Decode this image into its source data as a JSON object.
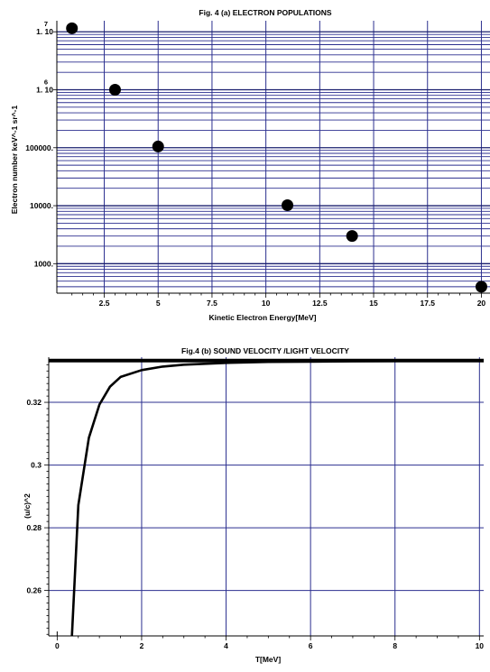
{
  "chart_data": [
    {
      "type": "scatter",
      "title": "Fig. 4 (a)  ELECTRON POPULATIONS",
      "xlabel": "Kinetic Electron Energy[MeV]",
      "ylabel": "Electron number keV^-1 sr^-1",
      "x_scale": "linear",
      "y_scale": "log",
      "xlim": [
        0.3,
        20.4
      ],
      "ylim": [
        310,
        15500000
      ],
      "x_ticks": [
        2.5,
        5,
        7.5,
        10,
        12.5,
        15,
        17.5,
        20
      ],
      "x_tick_labels": [
        "2.5",
        "5",
        "7.5",
        "10",
        "12.5",
        "15",
        "17.5",
        "20"
      ],
      "y_ticks": [
        {
          "value": 1000,
          "mantissa": "1000.",
          "exponent": ""
        },
        {
          "value": 10000,
          "mantissa": "10000.",
          "exponent": ""
        },
        {
          "value": 100000,
          "mantissa": "100000.",
          "exponent": ""
        },
        {
          "value": 1000000,
          "mantissa": "1. 10",
          "exponent": "6"
        },
        {
          "value": 10000000,
          "mantissa": "1. 10",
          "exponent": "7"
        }
      ],
      "grid": true,
      "series": [
        {
          "x": [
            1,
            3,
            5,
            11,
            14,
            20
          ],
          "y": [
            11500000,
            1000000,
            105000,
            10200,
            3000,
            400
          ]
        }
      ]
    },
    {
      "type": "line",
      "title": "Fig.4 (b) SOUND VELOCITY /LIGHT VELOCITY",
      "xlabel": "T[MeV]",
      "ylabel": "(u/c)^2",
      "xlim": [
        -0.2,
        10.1
      ],
      "ylim": [
        0.2455,
        0.3344
      ],
      "x_ticks": [
        0,
        2,
        4,
        6,
        8,
        10
      ],
      "x_tick_labels": [
        "0",
        "2",
        "4",
        "6",
        "8",
        "10"
      ],
      "y_ticks": [
        0.26,
        0.28,
        0.3,
        0.32
      ],
      "y_tick_labels": [
        "0.26",
        "0.28",
        "0.3",
        "0.32"
      ],
      "grid": true,
      "series": [
        {
          "x": [
            0.35,
            0.5,
            0.75,
            1.0,
            1.25,
            1.5,
            2.0,
            2.5,
            3.0,
            4.0,
            5.0,
            6.0,
            7.0,
            8.0,
            9.0,
            10.0
          ],
          "y": [
            0.2455,
            0.2872,
            0.3087,
            0.3193,
            0.325,
            0.3281,
            0.3303,
            0.3314,
            0.332,
            0.3326,
            0.3329,
            0.333,
            0.3331,
            0.3332,
            0.3332,
            0.3333
          ]
        },
        {
          "x": [
            -0.2,
            10.1
          ],
          "y": [
            0.33333,
            0.33333
          ]
        }
      ]
    }
  ]
}
